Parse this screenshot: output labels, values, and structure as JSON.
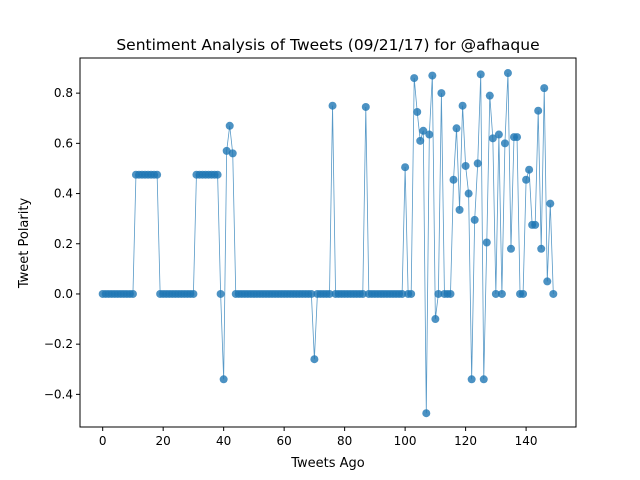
{
  "chart_data": {
    "type": "line",
    "title": "Sentiment Analysis of Tweets (09/21/17) for @afhaque",
    "xlabel": "Tweets Ago",
    "ylabel": "Tweet Polarity",
    "xlim": [
      -7.5,
      156.5
    ],
    "ylim": [
      -0.53,
      0.94
    ],
    "xticks": [
      0,
      20,
      40,
      60,
      80,
      100,
      120,
      140
    ],
    "yticks": [
      -0.4,
      -0.2,
      0.0,
      0.2,
      0.4,
      0.6,
      0.8
    ],
    "ytick_labels": [
      "−0.4",
      "−0.2",
      "0.0",
      "0.2",
      "0.4",
      "0.6",
      "0.8"
    ],
    "grid": false,
    "legend": "none",
    "series": [
      {
        "color": "#1f77b4",
        "marker": "circle",
        "x": [
          0,
          1,
          2,
          3,
          4,
          5,
          6,
          7,
          8,
          9,
          10,
          11,
          12,
          13,
          14,
          15,
          16,
          17,
          18,
          19,
          20,
          21,
          22,
          23,
          24,
          25,
          26,
          27,
          28,
          29,
          30,
          31,
          32,
          33,
          34,
          35,
          36,
          37,
          38,
          39,
          40,
          41,
          42,
          43,
          44,
          45,
          46,
          47,
          48,
          49,
          50,
          51,
          52,
          53,
          54,
          55,
          56,
          57,
          58,
          59,
          60,
          61,
          62,
          63,
          64,
          65,
          66,
          67,
          68,
          69,
          70,
          71,
          72,
          73,
          74,
          75,
          76,
          77,
          78,
          79,
          80,
          81,
          82,
          83,
          84,
          85,
          86,
          87,
          88,
          89,
          90,
          91,
          92,
          93,
          94,
          95,
          96,
          97,
          98,
          99,
          100,
          101,
          102,
          103,
          104,
          105,
          106,
          107,
          108,
          109,
          110,
          111,
          112,
          113,
          114,
          115,
          116,
          117,
          118,
          119,
          120,
          121,
          122,
          123,
          124,
          125,
          126,
          127,
          128,
          129,
          130,
          131,
          132,
          133,
          134,
          135,
          136,
          137,
          138,
          139,
          140,
          141,
          142,
          143,
          144,
          145,
          146,
          147,
          148,
          149
        ],
        "y": [
          0,
          0,
          0,
          0,
          0,
          0,
          0,
          0,
          0,
          0,
          0,
          0.475,
          0.475,
          0.475,
          0.475,
          0.475,
          0.475,
          0.475,
          0.475,
          0,
          0,
          0,
          0,
          0,
          0,
          0,
          0,
          0,
          0,
          0,
          0,
          0.475,
          0.475,
          0.475,
          0.475,
          0.475,
          0.475,
          0.475,
          0.475,
          0,
          -0.34,
          0.57,
          0.67,
          0.56,
          0,
          0,
          0,
          0,
          0,
          0,
          0,
          0,
          0,
          0,
          0,
          0,
          0,
          0,
          0,
          0,
          0,
          0,
          0,
          0,
          0,
          0,
          0,
          0,
          0,
          0,
          -0.26,
          0,
          0,
          0,
          0,
          0,
          0.75,
          0,
          0,
          0,
          0,
          0,
          0,
          0,
          0,
          0,
          0,
          0.745,
          0,
          0,
          0,
          0,
          0,
          0,
          0,
          0,
          0,
          0,
          0,
          0,
          0.505,
          0,
          0,
          0.86,
          0.725,
          0.61,
          0.65,
          -0.475,
          0.635,
          0.87,
          -0.1,
          0,
          0.8,
          0,
          0,
          0,
          0.455,
          0.66,
          0.335,
          0.75,
          0.51,
          0.4,
          -0.34,
          0.295,
          0.52,
          0.875,
          -0.34,
          0.205,
          0.79,
          0.62,
          0,
          0.635,
          0,
          0.6,
          0.88,
          0.18,
          0.625,
          0.625,
          0,
          0,
          0.455,
          0.495,
          0.275,
          0.275,
          0.73,
          0.18,
          0.82,
          0.05,
          0.36,
          0
        ]
      }
    ]
  }
}
